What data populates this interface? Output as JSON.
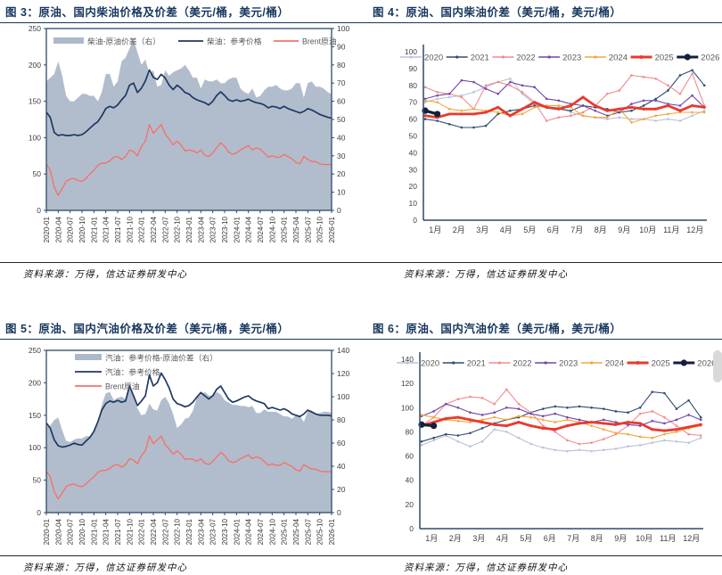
{
  "colors": {
    "title_navy": "#17375e",
    "axis": "#2e4a6b",
    "tick_label": "#404040",
    "legend_text": "#595959",
    "area_fill": "#adb9ca",
    "ref_price_line": "#1f3864",
    "brent_line": "#f4736b",
    "y2020": "#b9c3d6",
    "y2021": "#2e4d71",
    "y2022": "#f28b8c",
    "y2023": "#7146a8",
    "y2024": "#f6a53a",
    "y2025": "#e83a2e",
    "y2026": "#141f3c"
  },
  "panels": [
    {
      "title": "图 3：原油、国内柴油价格及价差（美元/桶，美元/桶）",
      "source": "资料来源：万得，信达证券研发中心"
    },
    {
      "title": "图 4：原油、国内柴油价差（美元/桶，美元/桶）",
      "source": "资料来源：万得，信达证券研发中心"
    },
    {
      "title": "图 5：原油、国内汽油价格及价差（美元/桶，美元/桶）",
      "source": "资料来源：万得，信达证券研发中心"
    },
    {
      "title": "图 6：原油、国内汽油价差（美元/桶，美元/桶）",
      "source": "资料来源：万得，信达证券研发中心"
    }
  ],
  "chart_data": [
    {
      "type": "area",
      "title": "图 3：原油、国内柴油价格及价差（美元/桶，美元/桶）",
      "left_ylim": [
        0,
        250
      ],
      "left_ticks": [
        0,
        50,
        100,
        150,
        200,
        250
      ],
      "right_ylim": [
        0,
        100
      ],
      "right_ticks": [
        0,
        10,
        20,
        30,
        40,
        50,
        60,
        70,
        80,
        90,
        100
      ],
      "x_tick_labels": [
        "2020-01",
        "2020-04",
        "2020-07",
        "2020-10",
        "2021-01",
        "2021-04",
        "2021-07",
        "2021-10",
        "2022-01",
        "2022-04",
        "2022-07",
        "2022-10",
        "2023-01",
        "2023-04",
        "2023-07",
        "2023-10",
        "2024-01",
        "2024-04",
        "2024-07",
        "2024-10",
        "2025-01",
        "2025-04",
        "2025-07",
        "2025-10",
        "2026-01"
      ],
      "legend_layout": "row",
      "area_series": {
        "name": "柴油-原油价差（右）",
        "axis": "right",
        "color_key": "area_fill",
        "values": [
          71,
          73,
          75,
          82,
          74,
          63,
          60,
          60,
          62,
          64,
          64,
          63,
          63,
          60,
          65,
          75,
          75,
          68,
          71,
          82,
          84,
          89,
          94,
          87,
          80,
          83,
          75,
          77,
          68,
          69,
          77,
          74,
          76,
          77,
          78,
          80,
          77,
          73,
          73,
          67,
          72,
          71,
          71,
          72,
          70,
          70,
          72,
          73,
          73,
          67,
          65,
          64,
          67,
          62,
          63,
          66,
          68,
          68,
          69,
          67,
          66,
          66,
          67,
          70,
          70,
          62,
          70,
          71,
          68,
          68,
          67,
          65,
          64
        ]
      },
      "line_series": [
        {
          "name": "柴油：参考价格",
          "axis": "left",
          "color_key": "ref_price_line",
          "values": [
            135,
            128,
            107,
            103,
            104,
            103,
            103,
            104,
            103,
            104,
            108,
            113,
            118,
            122,
            130,
            140,
            143,
            141,
            145,
            152,
            158,
            172,
            175,
            162,
            168,
            178,
            193,
            183,
            180,
            187,
            182,
            172,
            166,
            172,
            168,
            162,
            160,
            155,
            152,
            150,
            148,
            145,
            150,
            158,
            163,
            158,
            152,
            150,
            152,
            150,
            151,
            153,
            150,
            148,
            147,
            145,
            141,
            143,
            142,
            140,
            143,
            140,
            138,
            136,
            134,
            136,
            140,
            138,
            135,
            132,
            130,
            128,
            127
          ]
        },
        {
          "name": "Brent原油",
          "axis": "left",
          "color_key": "brent_line",
          "values": [
            64,
            55,
            32,
            21,
            30,
            40,
            43,
            44,
            41,
            40,
            44,
            50,
            55,
            62,
            65,
            65,
            68,
            73,
            74,
            70,
            74,
            83,
            81,
            75,
            88,
            95,
            118,
            106,
            112,
            118,
            105,
            98,
            90,
            95,
            90,
            82,
            83,
            82,
            79,
            83,
            76,
            74,
            79,
            86,
            93,
            88,
            80,
            77,
            79,
            83,
            86,
            89,
            83,
            86,
            84,
            79,
            73,
            75,
            73,
            73,
            77,
            74,
            71,
            66,
            64,
            74,
            70,
            67,
            67,
            64,
            63,
            63,
            63
          ]
        }
      ]
    },
    {
      "type": "line",
      "title": "图 4：原油、国内柴油价差（美元/桶，美元/桶）",
      "ylim": [
        0,
        100
      ],
      "y_ticks": [
        0,
        10,
        20,
        30,
        40,
        50,
        60,
        70,
        80,
        90,
        100
      ],
      "x_tick_labels": [
        "1月",
        "2月",
        "3月",
        "4月",
        "5月",
        "6月",
        "7月",
        "8月",
        "9月",
        "10月",
        "11月",
        "12月"
      ],
      "series": [
        {
          "name": "2020",
          "color_key": "y2020",
          "values": [
            70,
            72,
            73,
            74,
            76,
            79,
            82,
            84,
            75,
            69,
            67,
            67,
            64,
            62,
            61,
            60,
            61,
            60,
            60,
            59,
            60,
            59,
            62,
            65
          ]
        },
        {
          "name": "2021",
          "color_key": "y2021",
          "values": [
            60,
            59,
            57,
            55,
            55,
            56,
            63,
            65,
            66,
            68,
            67,
            66,
            65,
            68,
            67,
            66,
            64,
            65,
            68,
            72,
            77,
            86,
            89,
            80
          ]
        },
        {
          "name": "2022",
          "color_key": "y2022",
          "values": [
            79,
            76,
            75,
            73,
            66,
            80,
            82,
            80,
            76,
            70,
            59,
            61,
            62,
            64,
            68,
            75,
            77,
            86,
            85,
            84,
            80,
            75,
            87,
            68
          ]
        },
        {
          "name": "2023",
          "color_key": "y2023",
          "values": [
            72,
            74,
            75,
            83,
            82,
            78,
            75,
            82,
            80,
            79,
            72,
            71,
            69,
            68,
            65,
            62,
            64,
            69,
            71,
            71,
            69,
            68,
            74,
            67
          ]
        },
        {
          "name": "2024",
          "color_key": "y2024",
          "values": [
            71,
            70,
            66,
            65,
            66,
            65,
            64,
            62,
            63,
            67,
            68,
            68,
            67,
            62,
            61,
            61,
            66,
            58,
            60,
            62,
            63,
            64,
            64,
            64
          ]
        },
        {
          "name": "2025",
          "color_key": "y2025",
          "values": [
            62,
            61,
            63,
            63,
            63,
            64,
            67,
            62,
            66,
            70,
            67,
            66,
            68,
            73,
            68,
            65,
            66,
            67,
            66,
            66,
            68,
            65,
            68,
            67
          ]
        },
        {
          "name": "2026",
          "color_key": "y2026",
          "values": [
            65,
            63
          ]
        }
      ]
    },
    {
      "type": "area",
      "title": "图 5：原油、国内汽油价格及价差（美元/桶，美元/桶）",
      "left_ylim": [
        0,
        250
      ],
      "left_ticks": [
        0,
        50,
        100,
        150,
        200,
        250
      ],
      "right_ylim": [
        0,
        140
      ],
      "right_ticks": [
        0,
        20,
        40,
        60,
        80,
        100,
        120,
        140
      ],
      "x_tick_labels": [
        "2020-01",
        "2020-04",
        "2020-07",
        "2020-10",
        "2021-01",
        "2021-04",
        "2021-07",
        "2021-10",
        "2022-01",
        "2022-04",
        "2022-07",
        "2022-10",
        "2023-01",
        "2023-04",
        "2023-07",
        "2023-10",
        "2024-01",
        "2024-04",
        "2024-07",
        "2024-10",
        "2025-01",
        "2025-04",
        "2025-07",
        "2025-10",
        "2026-01"
      ],
      "legend_layout": "column",
      "area_series": {
        "name": "汽油：参考价格-原油价差（右）",
        "axis": "right",
        "color_key": "area_fill",
        "values": [
          74,
          75,
          80,
          82,
          71,
          62,
          61,
          63,
          64,
          64,
          66,
          66,
          70,
          78,
          93,
          103,
          104,
          97,
          99,
          100,
          98,
          112,
          99,
          90,
          84,
          85,
          94,
          89,
          88,
          97,
          100,
          94,
          85,
          73,
          76,
          81,
          82,
          88,
          99,
          102,
          104,
          101,
          101,
          104,
          102,
          97,
          95,
          93,
          93,
          92,
          92,
          91,
          92,
          86,
          86,
          89,
          87,
          87,
          87,
          85,
          83,
          83,
          81,
          84,
          84,
          78,
          88,
          88,
          85,
          86,
          87,
          87,
          86
        ]
      },
      "line_series": [
        {
          "name": "汽油：参考价格",
          "axis": "left",
          "color_key": "ref_price_line",
          "values": [
            138,
            130,
            112,
            103,
            101,
            102,
            104,
            107,
            105,
            104,
            110,
            116,
            125,
            140,
            158,
            168,
            172,
            170,
            173,
            170,
            172,
            195,
            180,
            165,
            172,
            180,
            212,
            195,
            200,
            215,
            205,
            192,
            175,
            168,
            166,
            163,
            165,
            170,
            178,
            185,
            180,
            175,
            180,
            190,
            195,
            185,
            175,
            170,
            172,
            175,
            178,
            180,
            175,
            172,
            170,
            168,
            160,
            162,
            160,
            158,
            160,
            157,
            152,
            150,
            148,
            152,
            158,
            155,
            152,
            150,
            150,
            150,
            149
          ]
        },
        {
          "name": "Brent原油",
          "axis": "left",
          "color_key": "brent_line",
          "values": [
            64,
            55,
            32,
            21,
            30,
            40,
            43,
            44,
            41,
            40,
            44,
            50,
            55,
            62,
            65,
            65,
            68,
            73,
            74,
            70,
            74,
            83,
            81,
            75,
            88,
            95,
            118,
            106,
            112,
            118,
            105,
            98,
            90,
            95,
            90,
            82,
            83,
            82,
            79,
            83,
            76,
            74,
            79,
            86,
            93,
            88,
            80,
            77,
            79,
            83,
            86,
            89,
            83,
            86,
            84,
            79,
            73,
            75,
            73,
            73,
            77,
            74,
            71,
            66,
            64,
            74,
            70,
            67,
            67,
            64,
            63,
            63,
            63
          ]
        }
      ]
    },
    {
      "type": "line",
      "title": "图 6：原油、国内汽油价差（美元/桶，美元/桶）",
      "ylim": [
        0,
        140
      ],
      "y_ticks": [
        0,
        20,
        40,
        60,
        80,
        100,
        120,
        140
      ],
      "x_tick_labels": [
        "1月",
        "2月",
        "3月",
        "4月",
        "5月",
        "6月",
        "7月",
        "8月",
        "9月",
        "10月",
        "11月",
        "12月"
      ],
      "series": [
        {
          "name": "2020",
          "color_key": "y2020",
          "values": [
            69,
            73,
            77,
            72,
            68,
            72,
            82,
            80,
            75,
            70,
            67,
            65,
            64,
            65,
            64,
            65,
            66,
            68,
            69,
            71,
            73,
            72,
            71,
            75
          ]
        },
        {
          "name": "2021",
          "color_key": "y2021",
          "values": [
            72,
            75,
            78,
            77,
            79,
            83,
            87,
            90,
            92,
            96,
            99,
            101,
            100,
            101,
            100,
            99,
            97,
            96,
            100,
            113,
            112,
            99,
            106,
            92
          ]
        },
        {
          "name": "2022",
          "color_key": "y2022",
          "values": [
            85,
            92,
            103,
            107,
            109,
            108,
            103,
            115,
            103,
            96,
            85,
            80,
            73,
            70,
            71,
            74,
            78,
            85,
            95,
            97,
            92,
            85,
            78,
            77
          ]
        },
        {
          "name": "2023",
          "color_key": "y2023",
          "values": [
            93,
            97,
            103,
            100,
            96,
            94,
            96,
            100,
            99,
            95,
            93,
            95,
            92,
            90,
            88,
            90,
            88,
            86,
            85,
            89,
            87,
            90,
            94,
            90
          ]
        },
        {
          "name": "2024",
          "color_key": "y2024",
          "values": [
            94,
            92,
            90,
            89,
            88,
            90,
            92,
            90,
            93,
            92,
            90,
            88,
            90,
            88,
            85,
            82,
            79,
            78,
            76,
            75,
            78,
            80,
            83,
            85
          ]
        },
        {
          "name": "2025",
          "color_key": "y2025",
          "values": [
            85,
            88,
            91,
            92,
            90,
            88,
            86,
            85,
            88,
            85,
            83,
            82,
            85,
            87,
            88,
            87,
            86,
            88,
            87,
            82,
            81,
            82,
            84,
            86
          ]
        },
        {
          "name": "2026",
          "color_key": "y2026",
          "values": [
            86,
            85
          ]
        }
      ]
    }
  ]
}
